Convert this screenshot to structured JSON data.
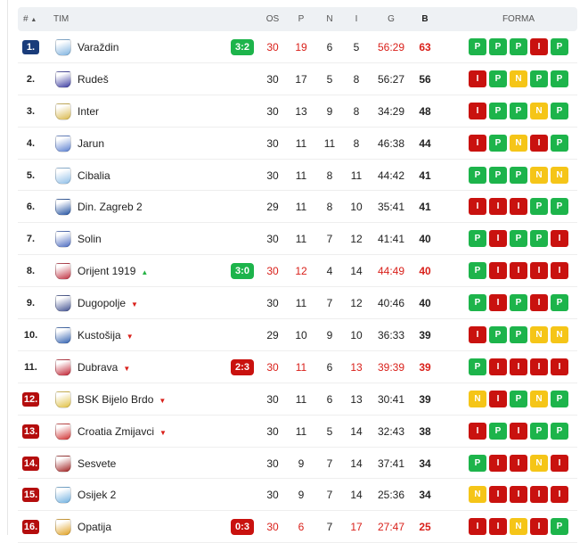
{
  "header": {
    "rank": "#",
    "sort": "▲",
    "team": "TIM",
    "played": "OS",
    "wins": "P",
    "draws": "N",
    "losses": "I",
    "goals": "G",
    "points": "B",
    "form": "FORMA"
  },
  "colors": {
    "win": "#1db44b",
    "loss": "#c9120f",
    "draw": "#f5c518",
    "blue_rank": "#1a3c7a",
    "red_rank": "#b40d0d"
  },
  "rows": [
    {
      "rank": "1.",
      "name": "Varaždin",
      "trend": "",
      "score": "3:2",
      "score_result": "win",
      "played": "30",
      "wins": "19",
      "draws": "6",
      "losses": "5",
      "goals": "56:29",
      "points": "63",
      "live": true,
      "form": [
        "P",
        "P",
        "P",
        "I",
        "P"
      ]
    },
    {
      "rank": "2.",
      "name": "Rudeš",
      "trend": "",
      "score": "",
      "played": "30",
      "wins": "17",
      "draws": "5",
      "losses": "8",
      "goals": "56:27",
      "points": "56",
      "live": false,
      "form": [
        "I",
        "P",
        "N",
        "P",
        "P"
      ]
    },
    {
      "rank": "3.",
      "name": "Inter",
      "trend": "",
      "score": "",
      "played": "30",
      "wins": "13",
      "draws": "9",
      "losses": "8",
      "goals": "34:29",
      "points": "48",
      "live": false,
      "form": [
        "I",
        "P",
        "P",
        "N",
        "P"
      ]
    },
    {
      "rank": "4.",
      "name": "Jarun",
      "trend": "",
      "score": "",
      "played": "30",
      "wins": "11",
      "draws": "11",
      "losses": "8",
      "goals": "46:38",
      "points": "44",
      "live": false,
      "form": [
        "I",
        "P",
        "N",
        "I",
        "P"
      ]
    },
    {
      "rank": "5.",
      "name": "Cibalia",
      "trend": "",
      "score": "",
      "played": "30",
      "wins": "11",
      "draws": "8",
      "losses": "11",
      "goals": "44:42",
      "points": "41",
      "live": false,
      "form": [
        "P",
        "P",
        "P",
        "N",
        "N"
      ]
    },
    {
      "rank": "6.",
      "name": "Din. Zagreb 2",
      "trend": "",
      "score": "",
      "played": "29",
      "wins": "11",
      "draws": "8",
      "losses": "10",
      "goals": "35:41",
      "points": "41",
      "live": false,
      "form": [
        "I",
        "I",
        "I",
        "P",
        "P"
      ]
    },
    {
      "rank": "7.",
      "name": "Solin",
      "trend": "",
      "score": "",
      "played": "30",
      "wins": "11",
      "draws": "7",
      "losses": "12",
      "goals": "41:41",
      "points": "40",
      "live": false,
      "form": [
        "P",
        "I",
        "P",
        "P",
        "I"
      ]
    },
    {
      "rank": "8.",
      "name": "Orijent 1919",
      "trend": "▲",
      "score": "3:0",
      "score_result": "win",
      "played": "30",
      "wins": "12",
      "draws": "4",
      "losses": "14",
      "goals": "44:49",
      "points": "40",
      "live": true,
      "form": [
        "P",
        "I",
        "I",
        "I",
        "I"
      ]
    },
    {
      "rank": "9.",
      "name": "Dugopolje",
      "trend": "▼",
      "score": "",
      "played": "30",
      "wins": "11",
      "draws": "7",
      "losses": "12",
      "goals": "40:46",
      "points": "40",
      "live": false,
      "form": [
        "P",
        "I",
        "P",
        "I",
        "P"
      ]
    },
    {
      "rank": "10.",
      "name": "Kustošija",
      "trend": "▼",
      "score": "",
      "played": "29",
      "wins": "10",
      "draws": "9",
      "losses": "10",
      "goals": "36:33",
      "points": "39",
      "live": false,
      "form": [
        "I",
        "P",
        "P",
        "N",
        "N"
      ]
    },
    {
      "rank": "11.",
      "name": "Dubrava",
      "trend": "▼",
      "score": "2:3",
      "score_result": "loss",
      "played": "30",
      "wins": "11",
      "draws": "6",
      "losses": "13",
      "goals": "39:39",
      "points": "39",
      "live": true,
      "form": [
        "P",
        "I",
        "I",
        "I",
        "I"
      ]
    },
    {
      "rank": "12.",
      "name": "BSK Bijelo Brdo",
      "trend": "▼",
      "score": "",
      "played": "30",
      "wins": "11",
      "draws": "6",
      "losses": "13",
      "goals": "30:41",
      "points": "39",
      "live": false,
      "form": [
        "N",
        "I",
        "P",
        "N",
        "P"
      ]
    },
    {
      "rank": "13.",
      "name": "Croatia Zmijavci",
      "trend": "▼",
      "score": "",
      "played": "30",
      "wins": "11",
      "draws": "5",
      "losses": "14",
      "goals": "32:43",
      "points": "38",
      "live": false,
      "form": [
        "I",
        "P",
        "I",
        "P",
        "P"
      ]
    },
    {
      "rank": "14.",
      "name": "Sesvete",
      "trend": "",
      "score": "",
      "played": "30",
      "wins": "9",
      "draws": "7",
      "losses": "14",
      "goals": "37:41",
      "points": "34",
      "live": false,
      "form": [
        "P",
        "I",
        "I",
        "N",
        "I"
      ]
    },
    {
      "rank": "15.",
      "name": "Osijek 2",
      "trend": "",
      "score": "",
      "played": "30",
      "wins": "9",
      "draws": "7",
      "losses": "14",
      "goals": "25:36",
      "points": "34",
      "live": false,
      "form": [
        "N",
        "I",
        "I",
        "I",
        "I"
      ]
    },
    {
      "rank": "16.",
      "name": "Opatija",
      "trend": "",
      "score": "0:3",
      "score_result": "loss",
      "played": "30",
      "wins": "6",
      "draws": "7",
      "losses": "17",
      "goals": "27:47",
      "points": "25",
      "live": true,
      "form": [
        "I",
        "I",
        "N",
        "I",
        "P"
      ]
    }
  ]
}
